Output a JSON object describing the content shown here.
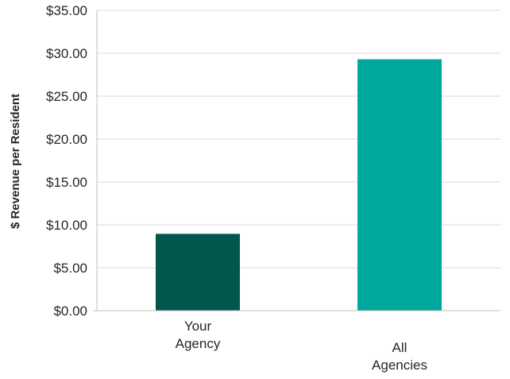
{
  "chart_data": {
    "type": "bar",
    "title": "",
    "xlabel": "",
    "ylabel": "$ Revenue per Resident",
    "ylim": [
      0,
      35
    ],
    "ytick_step": 5,
    "ytick_labels": [
      "$0.00",
      "$5.00",
      "$10.00",
      "$15.00",
      "$20.00",
      "$25.00",
      "$30.00",
      "$35.00"
    ],
    "categories": [
      [
        "Your",
        "Agency"
      ],
      [
        "All",
        "Agencies"
      ]
    ],
    "values": [
      8.95,
      29.3
    ],
    "colors": [
      "#02574d",
      "#00a99d"
    ],
    "grid": true,
    "legend": "none"
  }
}
